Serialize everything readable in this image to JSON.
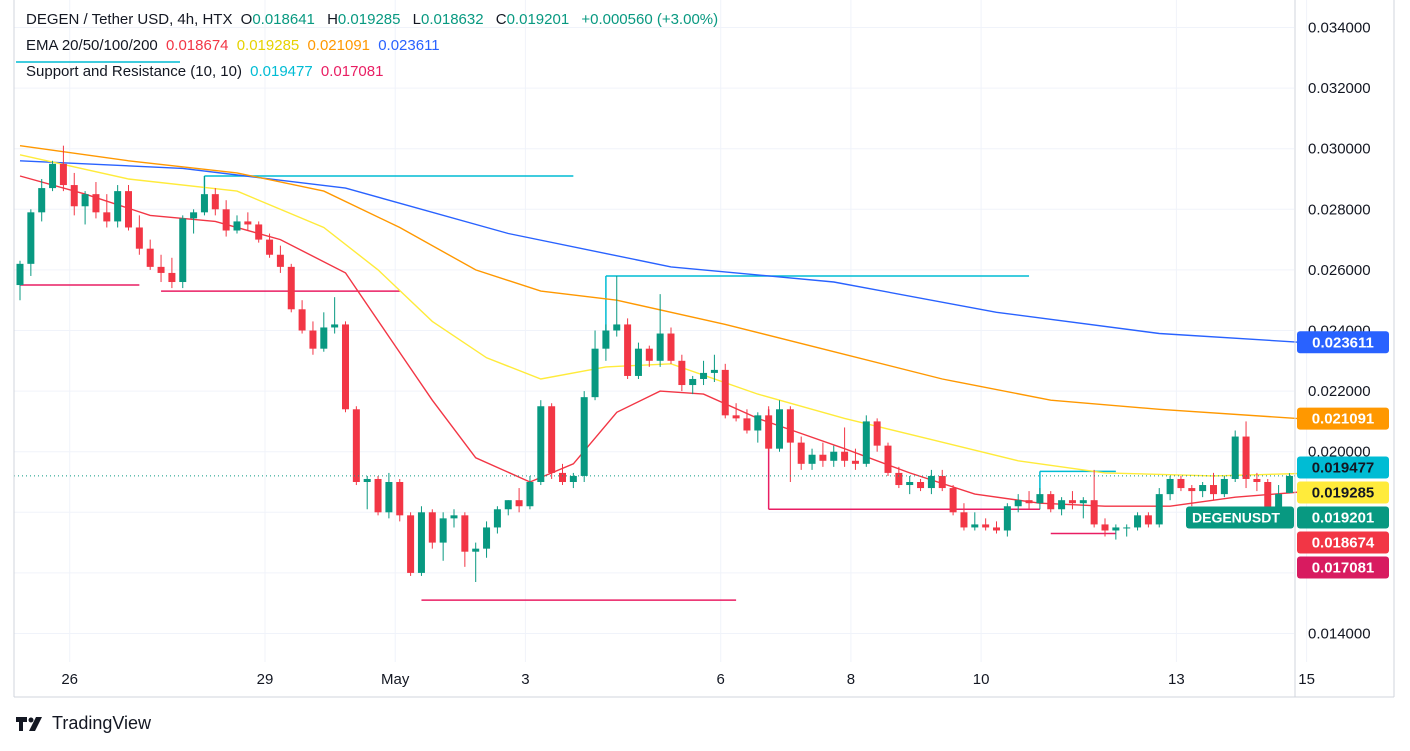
{
  "legend": {
    "symbol": "DEGEN / Tether USD, 4h, HTX",
    "o_label": "O",
    "o": "0.018641",
    "h_label": "H",
    "h": "0.019285",
    "l_label": "L",
    "l": "0.018632",
    "c_label": "C",
    "c": "0.019201",
    "change": "+0.000560 (+3.00%)",
    "ema_title": "EMA 20/50/100/200",
    "ema20": "0.018674",
    "ema50": "0.019285",
    "ema100": "0.021091",
    "ema200": "0.023611",
    "sr_title": "Support and Resistance (10, 10)",
    "sr_res": "0.019477",
    "sr_sup": "0.017081"
  },
  "branding": {
    "name": "TradingView"
  },
  "colors": {
    "up": "#089981",
    "down": "#f23645",
    "ema20": "#f23645",
    "ema50": "#ffeb3b",
    "ema100": "#ff9800",
    "ema200": "#2962ff",
    "resistance": "#00bcd4",
    "support": "#e91e63"
  },
  "chart_data": {
    "type": "candlestick",
    "title": "DEGEN / Tether USD, 4h, HTX",
    "ylim": [
      0.0133,
      0.035
    ],
    "y_ticks": [
      "0.014000",
      "0.016000",
      "0.018000",
      "0.020000",
      "0.022000",
      "0.024000",
      "0.026000",
      "0.028000",
      "0.030000",
      "0.032000",
      "0.034000"
    ],
    "x_ticks": [
      {
        "label": "26",
        "i": 2
      },
      {
        "label": "29",
        "i": 20
      },
      {
        "label": "May",
        "i": 32
      },
      {
        "label": "3",
        "i": 44
      },
      {
        "label": "6",
        "i": 62
      },
      {
        "label": "8",
        "i": 74
      },
      {
        "label": "10",
        "i": 86
      },
      {
        "label": "13",
        "i": 104
      },
      {
        "label": "15",
        "i": 116
      }
    ],
    "candles": [
      [
        0.0255,
        0.0263,
        0.025,
        0.0262
      ],
      [
        0.0262,
        0.028,
        0.0258,
        0.0279
      ],
      [
        0.0279,
        0.029,
        0.0276,
        0.0287
      ],
      [
        0.0287,
        0.0296,
        0.0286,
        0.0295
      ],
      [
        0.0295,
        0.0301,
        0.0286,
        0.0288
      ],
      [
        0.0288,
        0.0292,
        0.0278,
        0.0281
      ],
      [
        0.0281,
        0.0286,
        0.0275,
        0.0285
      ],
      [
        0.0285,
        0.0289,
        0.0277,
        0.0279
      ],
      [
        0.0279,
        0.0285,
        0.0274,
        0.0276
      ],
      [
        0.0276,
        0.0288,
        0.0274,
        0.0286
      ],
      [
        0.0286,
        0.0288,
        0.0273,
        0.0274
      ],
      [
        0.0274,
        0.0278,
        0.0265,
        0.0267
      ],
      [
        0.0267,
        0.027,
        0.026,
        0.0261
      ],
      [
        0.0261,
        0.0265,
        0.0256,
        0.0259
      ],
      [
        0.0259,
        0.0264,
        0.0254,
        0.0256
      ],
      [
        0.0256,
        0.0278,
        0.0254,
        0.0277
      ],
      [
        0.0277,
        0.028,
        0.0272,
        0.0279
      ],
      [
        0.0279,
        0.0291,
        0.0278,
        0.0285
      ],
      [
        0.0285,
        0.0287,
        0.0278,
        0.028
      ],
      [
        0.028,
        0.0283,
        0.0271,
        0.0273
      ],
      [
        0.0273,
        0.0278,
        0.0272,
        0.0276
      ],
      [
        0.0276,
        0.0279,
        0.0273,
        0.0275
      ],
      [
        0.0275,
        0.0276,
        0.0269,
        0.027
      ],
      [
        0.027,
        0.0272,
        0.0264,
        0.0265
      ],
      [
        0.0265,
        0.0268,
        0.0259,
        0.0261
      ],
      [
        0.0261,
        0.0262,
        0.0246,
        0.0247
      ],
      [
        0.0247,
        0.025,
        0.0239,
        0.024
      ],
      [
        0.024,
        0.0243,
        0.0232,
        0.0234
      ],
      [
        0.0234,
        0.0246,
        0.0233,
        0.0241
      ],
      [
        0.0241,
        0.0251,
        0.0239,
        0.0242
      ],
      [
        0.0242,
        0.0243,
        0.0213,
        0.0214
      ],
      [
        0.0214,
        0.0215,
        0.0189,
        0.019
      ],
      [
        0.019,
        0.0192,
        0.0181,
        0.0191
      ],
      [
        0.0191,
        0.0192,
        0.0179,
        0.018
      ],
      [
        0.018,
        0.0193,
        0.0178,
        0.019
      ],
      [
        0.019,
        0.0191,
        0.0177,
        0.0179
      ],
      [
        0.0179,
        0.018,
        0.0159,
        0.016
      ],
      [
        0.016,
        0.0182,
        0.0159,
        0.018
      ],
      [
        0.018,
        0.0181,
        0.0168,
        0.017
      ],
      [
        0.017,
        0.018,
        0.0164,
        0.0178
      ],
      [
        0.0178,
        0.0181,
        0.0175,
        0.0179
      ],
      [
        0.0179,
        0.018,
        0.0162,
        0.0167
      ],
      [
        0.0167,
        0.017,
        0.0157,
        0.0168
      ],
      [
        0.0168,
        0.0177,
        0.0165,
        0.0175
      ],
      [
        0.0175,
        0.0182,
        0.0173,
        0.0181
      ],
      [
        0.0181,
        0.0184,
        0.0179,
        0.0184
      ],
      [
        0.0184,
        0.0188,
        0.018,
        0.0182
      ],
      [
        0.0182,
        0.0192,
        0.0181,
        0.019
      ],
      [
        0.019,
        0.0217,
        0.0189,
        0.0215
      ],
      [
        0.0215,
        0.0216,
        0.0191,
        0.0193
      ],
      [
        0.0193,
        0.0196,
        0.0189,
        0.019
      ],
      [
        0.019,
        0.0193,
        0.0188,
        0.0192
      ],
      [
        0.0192,
        0.022,
        0.019,
        0.0218
      ],
      [
        0.0218,
        0.024,
        0.0217,
        0.0234
      ],
      [
        0.0234,
        0.0242,
        0.023,
        0.024
      ],
      [
        0.024,
        0.0258,
        0.0238,
        0.0242
      ],
      [
        0.0242,
        0.0244,
        0.0224,
        0.0225
      ],
      [
        0.0225,
        0.0236,
        0.0224,
        0.0234
      ],
      [
        0.0234,
        0.0235,
        0.0228,
        0.023
      ],
      [
        0.023,
        0.0252,
        0.0228,
        0.0239
      ],
      [
        0.0239,
        0.0241,
        0.0229,
        0.023
      ],
      [
        0.023,
        0.0232,
        0.022,
        0.0222
      ],
      [
        0.0222,
        0.0225,
        0.0219,
        0.0224
      ],
      [
        0.0224,
        0.023,
        0.0222,
        0.0226
      ],
      [
        0.0226,
        0.0232,
        0.0223,
        0.0227
      ],
      [
        0.0227,
        0.0229,
        0.0211,
        0.0212
      ],
      [
        0.0212,
        0.0216,
        0.021,
        0.0211
      ],
      [
        0.0211,
        0.0214,
        0.0206,
        0.0207
      ],
      [
        0.0207,
        0.0213,
        0.0203,
        0.0212
      ],
      [
        0.0212,
        0.0215,
        0.02,
        0.0201
      ],
      [
        0.0201,
        0.0217,
        0.02,
        0.0214
      ],
      [
        0.0214,
        0.0215,
        0.019,
        0.0203
      ],
      [
        0.0203,
        0.0205,
        0.0194,
        0.0196
      ],
      [
        0.0196,
        0.0201,
        0.0194,
        0.0199
      ],
      [
        0.0199,
        0.0203,
        0.0195,
        0.0197
      ],
      [
        0.0197,
        0.0202,
        0.0195,
        0.02
      ],
      [
        0.02,
        0.0208,
        0.0195,
        0.0197
      ],
      [
        0.0197,
        0.0201,
        0.0194,
        0.0196
      ],
      [
        0.0196,
        0.0212,
        0.0195,
        0.021
      ],
      [
        0.021,
        0.0211,
        0.02,
        0.0202
      ],
      [
        0.0202,
        0.0203,
        0.0192,
        0.0193
      ],
      [
        0.0193,
        0.0195,
        0.0188,
        0.0189
      ],
      [
        0.0189,
        0.0192,
        0.0186,
        0.019
      ],
      [
        0.019,
        0.0191,
        0.0187,
        0.0188
      ],
      [
        0.0188,
        0.0194,
        0.0186,
        0.0192
      ],
      [
        0.0192,
        0.0194,
        0.0187,
        0.0188
      ],
      [
        0.0188,
        0.0189,
        0.0179,
        0.018
      ],
      [
        0.018,
        0.0183,
        0.0174,
        0.0175
      ],
      [
        0.0175,
        0.018,
        0.0174,
        0.0176
      ],
      [
        0.0176,
        0.0178,
        0.0174,
        0.0175
      ],
      [
        0.0175,
        0.0177,
        0.0173,
        0.0174
      ],
      [
        0.0174,
        0.0183,
        0.0172,
        0.0182
      ],
      [
        0.0182,
        0.0186,
        0.018,
        0.0184
      ],
      [
        0.0184,
        0.0187,
        0.0181,
        0.0183
      ],
      [
        0.0183,
        0.0188,
        0.0181,
        0.0186
      ],
      [
        0.0186,
        0.0187,
        0.018,
        0.0181
      ],
      [
        0.0181,
        0.0185,
        0.0179,
        0.0184
      ],
      [
        0.0184,
        0.0187,
        0.0181,
        0.0183
      ],
      [
        0.0183,
        0.0185,
        0.0178,
        0.0184
      ],
      [
        0.0184,
        0.0194,
        0.0175,
        0.0176
      ],
      [
        0.0176,
        0.0178,
        0.0172,
        0.0174
      ],
      [
        0.0174,
        0.0176,
        0.0171,
        0.0175
      ],
      [
        0.0175,
        0.0176,
        0.0172,
        0.0175
      ],
      [
        0.0175,
        0.018,
        0.0174,
        0.0179
      ],
      [
        0.0179,
        0.018,
        0.0175,
        0.0176
      ],
      [
        0.0176,
        0.0188,
        0.0175,
        0.0186
      ],
      [
        0.0186,
        0.0192,
        0.0184,
        0.0191
      ],
      [
        0.0191,
        0.0192,
        0.0187,
        0.0188
      ],
      [
        0.0188,
        0.0189,
        0.0182,
        0.0187
      ],
      [
        0.0187,
        0.019,
        0.0185,
        0.0189
      ],
      [
        0.0189,
        0.0193,
        0.0184,
        0.0186
      ],
      [
        0.0186,
        0.0192,
        0.0185,
        0.0191
      ],
      [
        0.0191,
        0.0207,
        0.019,
        0.0205
      ],
      [
        0.0205,
        0.021,
        0.0188,
        0.0191
      ],
      [
        0.0191,
        0.0193,
        0.0187,
        0.019
      ],
      [
        0.019,
        0.0191,
        0.0177,
        0.0181
      ],
      [
        0.0181,
        0.0189,
        0.0179,
        0.0186
      ],
      [
        0.01864,
        0.01929,
        0.01863,
        0.0192
      ]
    ],
    "ema": [
      {
        "name": "EMA 200",
        "color": "#2962ff",
        "points": [
          [
            0,
            0.0296
          ],
          [
            15,
            0.02935
          ],
          [
            30,
            0.0287
          ],
          [
            45,
            0.0272
          ],
          [
            60,
            0.0261
          ],
          [
            75,
            0.0256
          ],
          [
            90,
            0.0246
          ],
          [
            105,
            0.0239
          ],
          [
            118,
            0.02361
          ]
        ]
      },
      {
        "name": "EMA 100",
        "color": "#ff9800",
        "points": [
          [
            0,
            0.0301
          ],
          [
            10,
            0.0296
          ],
          [
            20,
            0.0292
          ],
          [
            28,
            0.0286
          ],
          [
            35,
            0.0274
          ],
          [
            42,
            0.026
          ],
          [
            48,
            0.0253
          ],
          [
            55,
            0.025
          ],
          [
            65,
            0.0242
          ],
          [
            75,
            0.0233
          ],
          [
            85,
            0.0224
          ],
          [
            95,
            0.0217
          ],
          [
            105,
            0.0214
          ],
          [
            118,
            0.02109
          ]
        ]
      },
      {
        "name": "EMA 50",
        "color": "#ffeb3b",
        "points": [
          [
            0,
            0.0298
          ],
          [
            10,
            0.029
          ],
          [
            20,
            0.0286
          ],
          [
            28,
            0.0274
          ],
          [
            33,
            0.026
          ],
          [
            38,
            0.0243
          ],
          [
            43,
            0.0231
          ],
          [
            48,
            0.0224
          ],
          [
            54,
            0.0228
          ],
          [
            60,
            0.0229
          ],
          [
            68,
            0.0219
          ],
          [
            76,
            0.0211
          ],
          [
            84,
            0.0204
          ],
          [
            92,
            0.0197
          ],
          [
            100,
            0.0193
          ],
          [
            110,
            0.0192
          ],
          [
            118,
            0.01928
          ]
        ]
      },
      {
        "name": "EMA 20",
        "color": "#f23645",
        "points": [
          [
            0,
            0.0291
          ],
          [
            6,
            0.0285
          ],
          [
            12,
            0.0278
          ],
          [
            18,
            0.0276
          ],
          [
            24,
            0.027
          ],
          [
            30,
            0.0259
          ],
          [
            34,
            0.0238
          ],
          [
            38,
            0.0217
          ],
          [
            42,
            0.0198
          ],
          [
            47,
            0.019
          ],
          [
            51,
            0.0196
          ],
          [
            55,
            0.0213
          ],
          [
            59,
            0.022
          ],
          [
            63,
            0.0219
          ],
          [
            68,
            0.0211
          ],
          [
            72,
            0.0206
          ],
          [
            76,
            0.0201
          ],
          [
            82,
            0.0193
          ],
          [
            88,
            0.0186
          ],
          [
            94,
            0.0183
          ],
          [
            100,
            0.0182
          ],
          [
            106,
            0.0182
          ],
          [
            112,
            0.0185
          ],
          [
            118,
            0.01867
          ]
        ]
      }
    ],
    "sr_lines": [
      {
        "kind": "resistance",
        "level": 0.0291,
        "from": 17,
        "to": 51
      },
      {
        "kind": "resistance",
        "level": 0.0258,
        "from": 54,
        "to": 93
      },
      {
        "kind": "resistance",
        "level": 0.01935,
        "from": 94,
        "to": 101
      },
      {
        "kind": "support",
        "level": 0.0255,
        "from": 0,
        "to": 11
      },
      {
        "kind": "support",
        "level": 0.0253,
        "from": 13,
        "to": 35
      },
      {
        "kind": "support",
        "level": 0.0181,
        "from": 69,
        "to": 94
      },
      {
        "kind": "support",
        "level": 0.0173,
        "from": 95,
        "to": 101
      },
      {
        "kind": "support",
        "level": 0.0151,
        "from": 37,
        "to": 66
      }
    ],
    "last_price": 0.019201,
    "price_badges": [
      {
        "label": "",
        "text": "0.023611",
        "value": 0.023611,
        "bg": "#2962ff",
        "fg": "#ffffff"
      },
      {
        "label": "",
        "text": "0.021091",
        "value": 0.021091,
        "bg": "#ff9800",
        "fg": "#ffffff"
      },
      {
        "label": "",
        "text": "0.019477",
        "value": 0.019477,
        "bg": "#00bcd4",
        "fg": "#131722"
      },
      {
        "label": "",
        "text": "0.019285",
        "value": 0.019285,
        "bg": "#ffeb3b",
        "fg": "#131722"
      },
      {
        "label": "DEGENUSDT",
        "text": "0.019201",
        "value": 0.019201,
        "bg": "#089981",
        "fg": "#ffffff"
      },
      {
        "label": "",
        "text": "0.018674",
        "value": 0.018674,
        "bg": "#f23645",
        "fg": "#ffffff"
      },
      {
        "label": "",
        "text": "0.017081",
        "value": 0.017081,
        "bg": "#d81b60",
        "fg": "#ffffff"
      }
    ]
  }
}
